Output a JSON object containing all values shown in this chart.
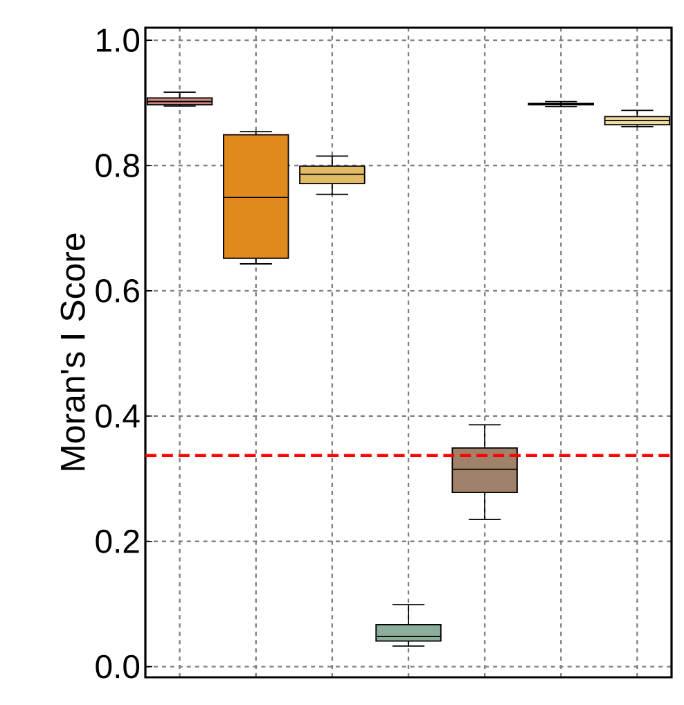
{
  "chart_data": {
    "type": "box",
    "ylabel": "Moran's I Score",
    "categories": [
      null,
      null,
      null,
      null,
      null,
      null,
      null
    ],
    "boxes": [
      {
        "low": 0.895,
        "q1": 0.897,
        "median": 0.902,
        "q3": 0.908,
        "high": 0.917
      },
      {
        "low": 0.643,
        "q1": 0.652,
        "median": 0.749,
        "q3": 0.849,
        "high": 0.854
      },
      {
        "low": 0.754,
        "q1": 0.771,
        "median": 0.786,
        "q3": 0.799,
        "high": 0.815
      },
      {
        "low": 0.033,
        "q1": 0.041,
        "median": 0.048,
        "q3": 0.067,
        "high": 0.099
      },
      {
        "low": 0.235,
        "q1": 0.278,
        "median": 0.315,
        "q3": 0.349,
        "high": 0.386
      },
      {
        "low": 0.894,
        "q1": 0.897,
        "median": 0.898,
        "q3": 0.899,
        "high": 0.902
      },
      {
        "low": 0.862,
        "q1": 0.865,
        "median": 0.872,
        "q3": 0.878,
        "high": 0.888
      }
    ],
    "colors": [
      "#c9857a",
      "#e08a1e",
      "#e3bb66",
      "#8aae9a",
      "#a0826a",
      "#9a9a9a",
      "#f0dca0"
    ],
    "ylim": [
      -0.017,
      1.02
    ],
    "yticks": [
      {
        "value": 0,
        "label": "0.0"
      },
      0.2,
      0.4,
      0.6,
      0.8,
      {
        "value": 1,
        "label": "1.0"
      }
    ],
    "ref_lines": [
      {
        "axis": "y",
        "value": 0.337,
        "color": "#ff0000",
        "line_style": "dashed"
      }
    ],
    "grid": true,
    "tick_labels": "y"
  }
}
